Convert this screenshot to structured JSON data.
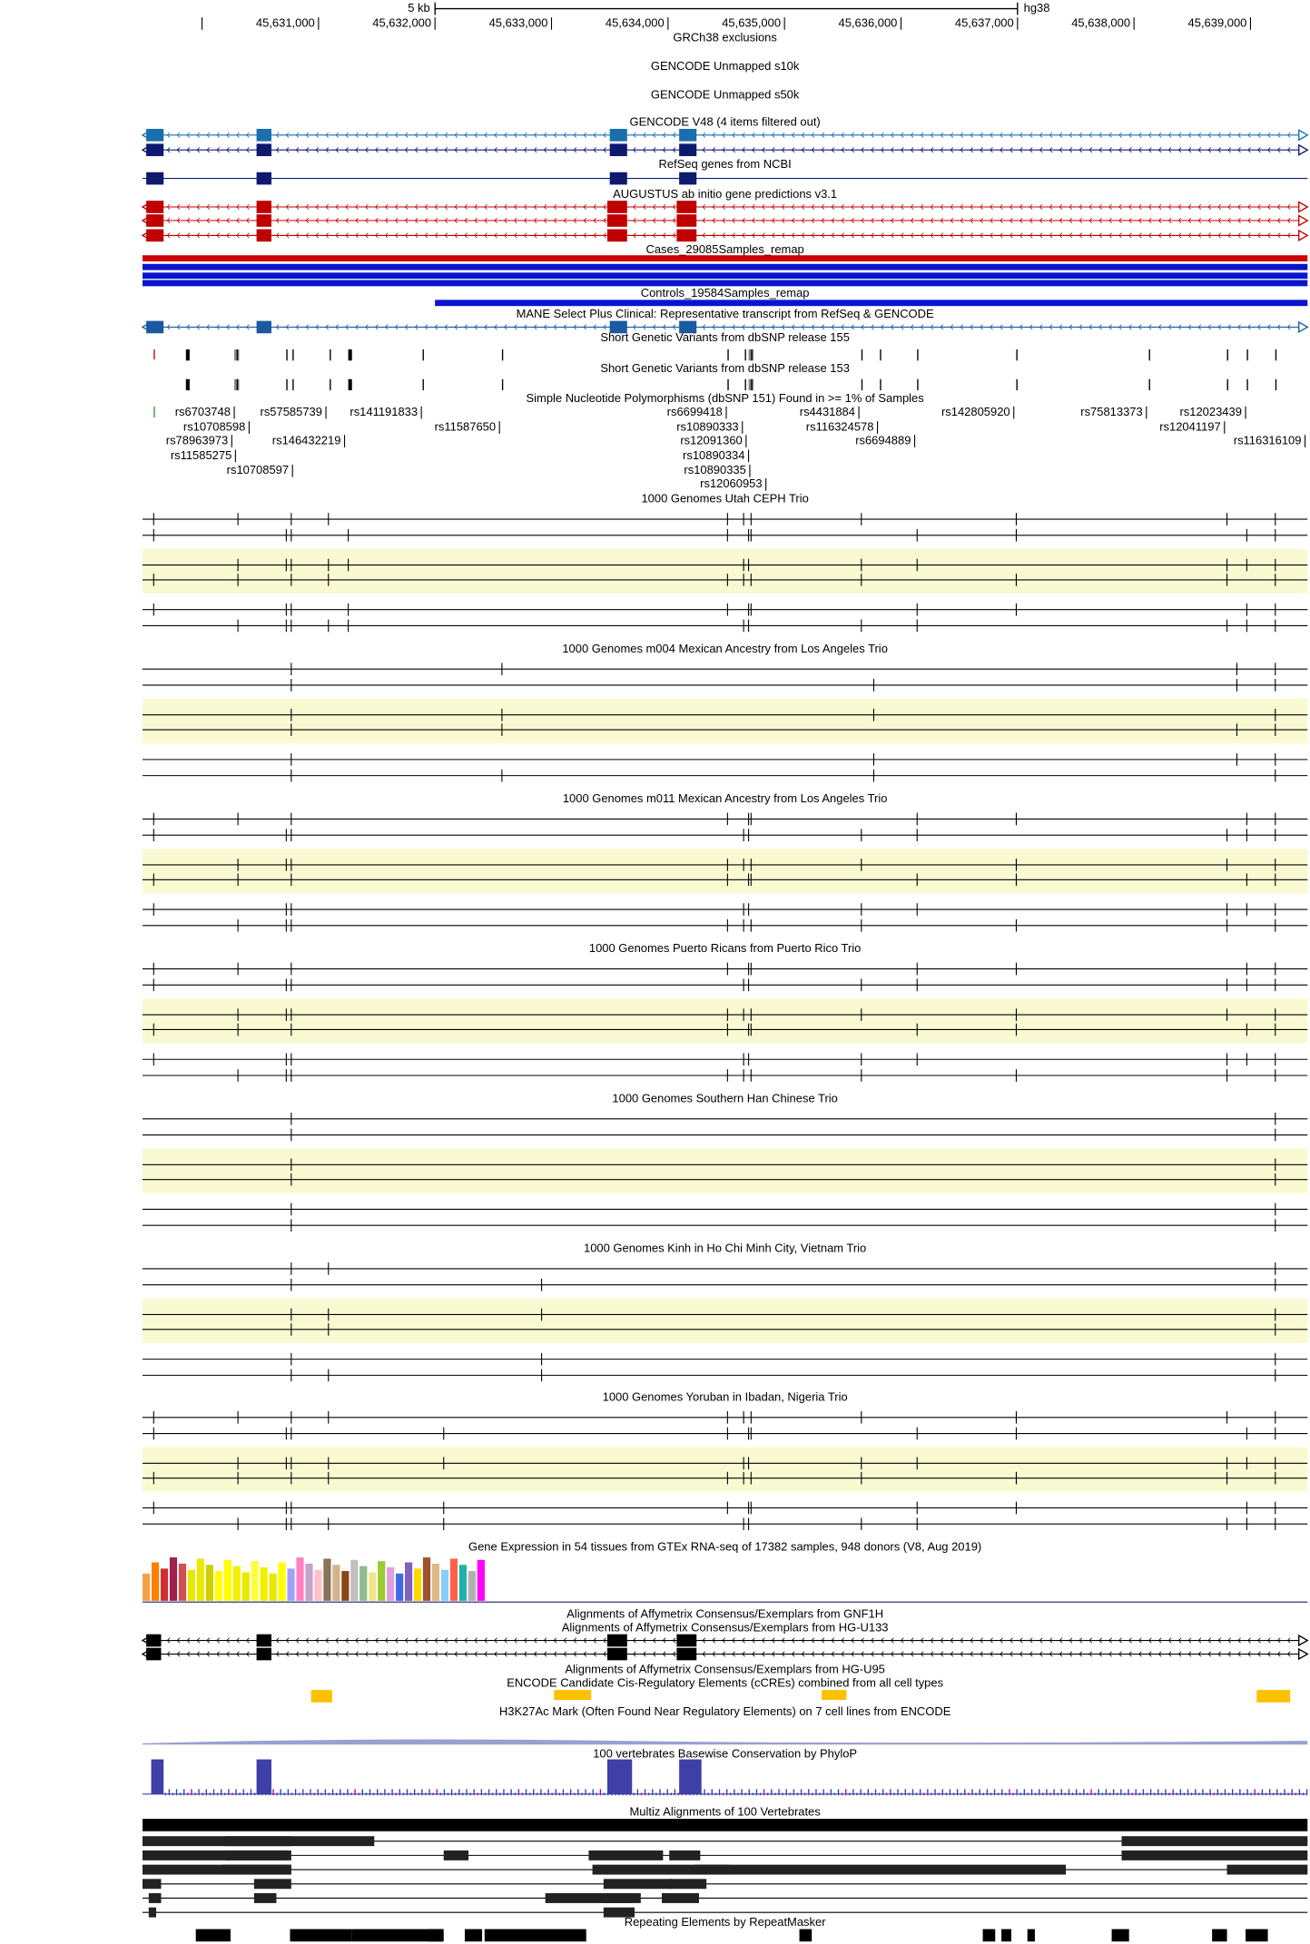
{
  "ruler": {
    "scale": "5 kb",
    "assembly": "hg38",
    "positions": [
      "45,631,000",
      "45,632,000",
      "45,633,000",
      "45,634,000",
      "45,635,000",
      "45,636,000",
      "45,637,000",
      "45,638,000",
      "45,639,000"
    ]
  },
  "tracks": [
    {
      "title": "GRCh38 exclusions"
    },
    {
      "title": "GENCODE Unmapped s10k"
    },
    {
      "title": "GENCODE Unmapped s50k"
    },
    {
      "title": "GENCODE V48 (4 items filtered out)"
    },
    {
      "title": "RefSeq genes from NCBI"
    },
    {
      "title": "AUGUSTUS ab initio gene predictions v3.1"
    },
    {
      "title": "Cases_29085Samples_remap"
    },
    {
      "title": "Controls_19584Samples_remap"
    },
    {
      "title": "MANE Select Plus Clinical: Representative transcript from RefSeq & GENCODE"
    },
    {
      "title": "Short Genetic Variants from dbSNP release 155"
    },
    {
      "title": "Short Genetic Variants from dbSNP release 153"
    },
    {
      "title": "Simple Nucleotide Polymorphisms (dbSNP 151) Found in >= 1% of Samples"
    },
    {
      "title": "1000 Genomes Utah CEPH Trio"
    },
    {
      "title": "1000 Genomes m004 Mexican Ancestry from Los Angeles Trio"
    },
    {
      "title": "1000 Genomes m011 Mexican Ancestry from Los Angeles Trio"
    },
    {
      "title": "1000 Genomes Puerto Ricans from Puerto Rico Trio"
    },
    {
      "title": "1000 Genomes Southern Han Chinese Trio"
    },
    {
      "title": "1000 Genomes Kinh in Ho Chi Minh City, Vietnam Trio"
    },
    {
      "title": "1000 Genomes Yoruban in Ibadan, Nigeria Trio"
    },
    {
      "title": "Gene Expression in 54 tissues from GTEx RNA-seq of 17382 samples, 948 donors (V8, Aug 2019)"
    },
    {
      "title": "Alignments of Affymetrix Consensus/Exemplars from GNF1H"
    },
    {
      "title": "Alignments of Affymetrix Consensus/Exemplars from HG-U133"
    },
    {
      "title": "Alignments of Affymetrix Consensus/Exemplars from HG-U95"
    },
    {
      "title": "ENCODE Candidate Cis-Regulatory Elements (cCREs) combined from all cell types"
    },
    {
      "title": "H3K27Ac Mark (Often Found Near Regulatory Elements) on 7 cell lines from ENCODE"
    },
    {
      "title": "100 vertebrates Basewise Conservation by PhyloP"
    },
    {
      "title": "Multiz Alignments of 100 Vertebrates"
    },
    {
      "title": "Repeating Elements by RepeatMasker"
    }
  ],
  "snps": {
    "labels": [
      "rs6703748",
      "rs10708598",
      "rs78963973",
      "rs11585275",
      "rs10708597",
      "rs57585739",
      "rs146432219",
      "rs141191833",
      "rs11587650",
      "rs6699418",
      "rs10890333",
      "rs12091360",
      "rs10890334",
      "rs10890335",
      "rs12060953",
      "rs4431884",
      "rs116324578",
      "rs6694889",
      "rs142805920",
      "rs75813373",
      "rs12023439",
      "rs12041197",
      "rs116316109"
    ]
  }
}
